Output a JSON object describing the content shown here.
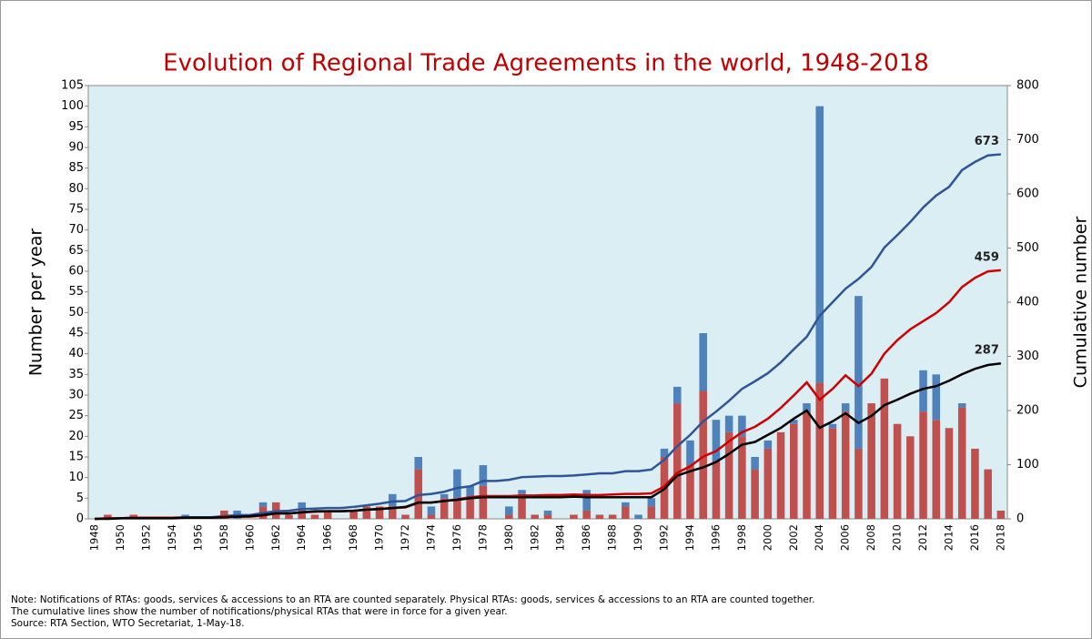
{
  "chart_data": {
    "type": "bar",
    "stacked": true,
    "title": "Evolution of Regional Trade Agreements in the world, 1948-2018",
    "ylabel": "Number per year",
    "y2label": "Cumulative number",
    "plot_background": "#dbeef4",
    "title_color": "#c00000",
    "grid": false,
    "categories": [
      "1948",
      null,
      "1950",
      null,
      "1952",
      null,
      "1954",
      null,
      "1956",
      null,
      "1958",
      null,
      "1960",
      null,
      "1962",
      null,
      "1964",
      null,
      "1966",
      null,
      "1968",
      null,
      "1970",
      null,
      "1972",
      null,
      "1974",
      null,
      "1976",
      null,
      "1978",
      null,
      "1980",
      null,
      "1982",
      null,
      "1984",
      null,
      "1986",
      null,
      "1988",
      null,
      "1990",
      null,
      "1992",
      null,
      "1994",
      null,
      "1996",
      null,
      "1998",
      null,
      "2000",
      null,
      "2002",
      null,
      "2004",
      null,
      "2006",
      null,
      "2008",
      null,
      "2010",
      null,
      "2012",
      null,
      "2014",
      null,
      "2016",
      null,
      "2018"
    ],
    "ylim": [
      0,
      105
    ],
    "yticks": [
      0,
      5,
      10,
      15,
      20,
      25,
      30,
      35,
      40,
      45,
      50,
      55,
      60,
      65,
      70,
      75,
      80,
      85,
      90,
      95,
      100,
      105
    ],
    "y2lim": [
      0,
      800
    ],
    "y2ticks": [
      0,
      100,
      200,
      300,
      400,
      500,
      600,
      700,
      800
    ],
    "series": [
      {
        "type": "bar",
        "color": "#c0504d",
        "values": [
          0,
          1,
          0,
          1,
          0,
          0,
          0,
          0,
          0,
          0,
          2,
          0,
          0,
          3,
          4,
          1,
          2,
          1,
          2,
          0,
          2,
          3,
          3,
          3,
          1,
          12,
          1,
          5,
          5,
          5,
          8,
          0,
          1,
          6,
          1,
          1,
          0,
          1,
          2,
          1,
          1,
          3,
          0,
          3,
          15,
          28,
          13,
          31,
          14,
          21,
          20,
          12,
          17,
          21,
          23,
          26,
          33,
          22,
          26,
          17,
          28,
          34,
          23,
          20,
          26,
          24,
          22,
          27,
          17,
          12,
          2
        ]
      },
      {
        "type": "bar",
        "color": "#4f81bd",
        "values": [
          0,
          0,
          0,
          0,
          0,
          0,
          0,
          1,
          0,
          0,
          0,
          2,
          0,
          1,
          0,
          0,
          2,
          0,
          0,
          0,
          0,
          0,
          0,
          3,
          0,
          3,
          2,
          1,
          7,
          3,
          5,
          0,
          2,
          1,
          0,
          1,
          0,
          0,
          5,
          0,
          0,
          1,
          1,
          2,
          2,
          4,
          6,
          14,
          10,
          4,
          5,
          3,
          2,
          0,
          1,
          2,
          67,
          1,
          2,
          37,
          0,
          0,
          0,
          0,
          10,
          11,
          0,
          1,
          0,
          0,
          0
        ]
      },
      {
        "type": "line",
        "axis": "y2",
        "color": "#2f5597",
        "values": [
          0,
          1,
          1,
          2,
          2,
          2,
          2,
          3,
          3,
          3,
          5,
          7,
          7,
          11,
          14,
          15,
          18,
          19,
          20,
          20,
          22,
          25,
          28,
          32,
          33,
          44,
          46,
          50,
          57,
          60,
          70,
          70,
          72,
          77,
          78,
          79,
          79,
          80,
          82,
          84,
          84,
          88,
          88,
          91,
          109,
          134,
          155,
          180,
          198,
          218,
          240,
          254,
          269,
          289,
          313,
          336,
          375,
          400,
          425,
          443,
          465,
          501,
          524,
          548,
          575,
          597,
          613,
          644,
          659,
          671,
          673
        ]
      },
      {
        "type": "line",
        "axis": "y2",
        "color": "#d00000",
        "values": [
          0,
          1,
          1,
          2,
          2,
          2,
          2,
          2,
          2,
          2,
          4,
          4,
          4,
          6,
          10,
          10,
          12,
          13,
          14,
          14,
          15,
          17,
          18,
          20,
          21,
          30,
          30,
          33,
          36,
          40,
          42,
          42,
          42,
          43,
          43,
          44,
          44,
          45,
          44,
          44,
          45,
          46,
          46,
          47,
          60,
          85,
          97,
          115,
          125,
          143,
          160,
          170,
          185,
          205,
          228,
          252,
          220,
          240,
          265,
          245,
          268,
          305,
          330,
          350,
          365,
          380,
          400,
          428,
          445,
          457,
          459
        ]
      },
      {
        "type": "line",
        "axis": "y2",
        "color": "#000000",
        "values": [
          0,
          0,
          1,
          1,
          1,
          1,
          1,
          2,
          2,
          2,
          3,
          4,
          5,
          7,
          10,
          10,
          12,
          14,
          14,
          14,
          15,
          17,
          18,
          20,
          22,
          30,
          30,
          33,
          35,
          38,
          40,
          40,
          40,
          40,
          40,
          40,
          40,
          41,
          40,
          40,
          40,
          40,
          40,
          40,
          55,
          80,
          88,
          95,
          105,
          120,
          137,
          142,
          155,
          168,
          185,
          200,
          168,
          180,
          195,
          177,
          190,
          210,
          220,
          231,
          240,
          245,
          255,
          267,
          277,
          284,
          287
        ]
      }
    ],
    "notes": [
      "Note: Notifications of RTAs: goods, services & accessions to an RTA are counted separately. Physical RTAs: goods, services & accessions to an RTA are counted together.",
      "The cumulative lines show the number of notifications/physical RTAs that were in force for a given year.",
      "Source: RTA Section, WTO Secretariat, 1-May-18."
    ]
  }
}
